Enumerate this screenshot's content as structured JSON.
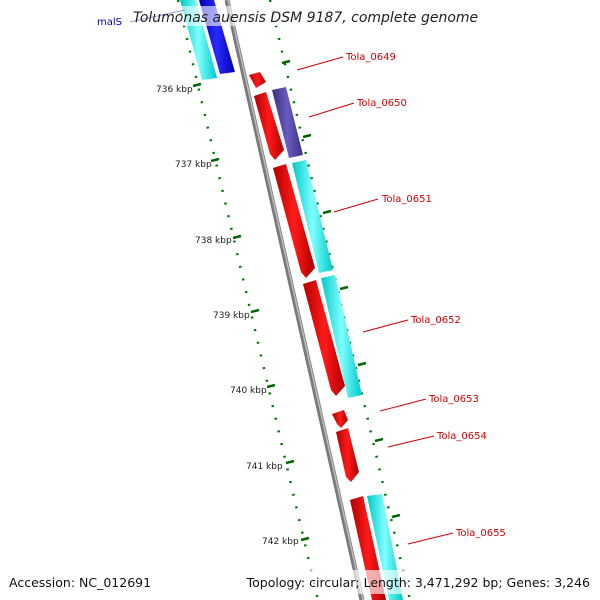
{
  "title": "Tolumonas auensis DSM 9187, complete genome",
  "footer": {
    "accession": "Accession: NC_012691",
    "topology": "Topology: circular; Length: 3,471,292 bp; Genes: 3,246"
  },
  "ticks": [
    "736 kbp",
    "737 kbp",
    "738 kbp",
    "739 kbp",
    "740 kbp",
    "741 kbp",
    "742 kbp"
  ],
  "genes": {
    "malS": "malS",
    "g0649": "Tola_0649",
    "g0650": "Tola_0650",
    "g0651": "Tola_0651",
    "g0652": "Tola_0652",
    "g0653": "Tola_0653",
    "g0654": "Tola_0654",
    "g0655": "Tola_0655"
  },
  "colors": {
    "gene_forward": "#ff0000",
    "cds_cyan": "#00ffff",
    "cds_blue": "#0000ee",
    "cds_purple": "#4b3e9a",
    "backbone": "#888888",
    "ticks_green": "#006600",
    "label_red": "#d00000",
    "label_blue": "#0000b0"
  }
}
